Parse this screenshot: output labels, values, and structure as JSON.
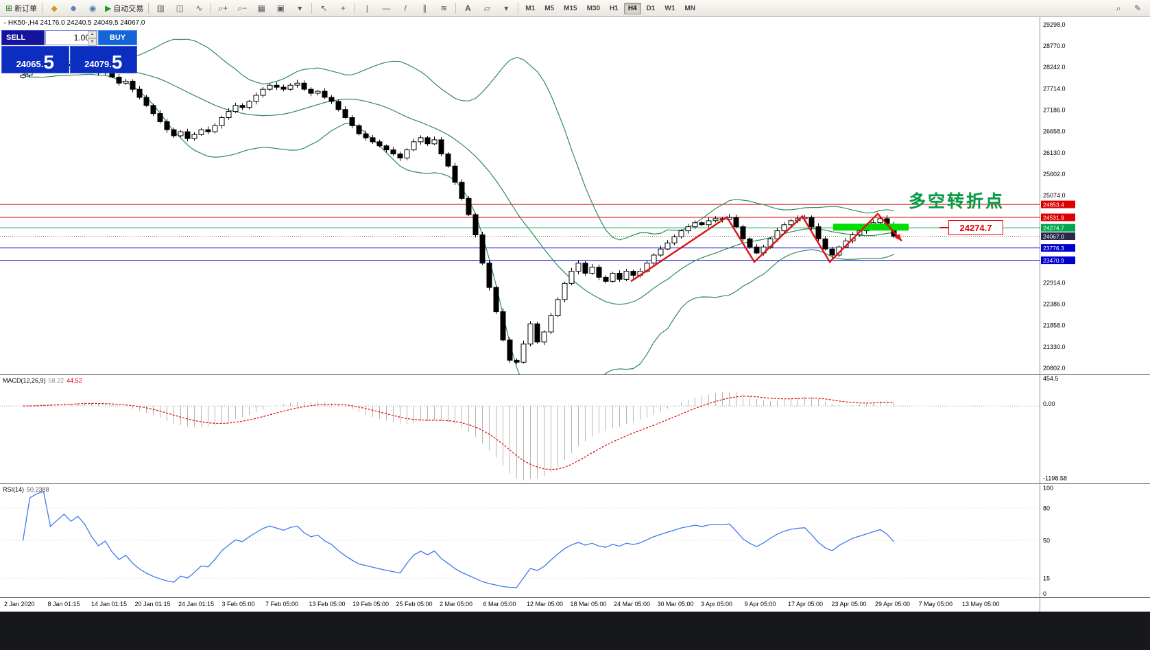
{
  "colors": {
    "toolbar_bg": "#f2f0ec",
    "bull": "#ffffff",
    "bear": "#000000",
    "candle_outline": "#000000",
    "bollinger": "#2e8b57",
    "macd_hist": "#b4b4b4",
    "macd_signal": "#dd0000",
    "rsi_line": "#3c78f0",
    "zigzag": "#e01515",
    "zone": "#00dd00",
    "level_red": "#dd0000",
    "level_green": "#00a651",
    "level_blue": "#0000cc"
  },
  "toolbar": {
    "new_order_label": "新订单",
    "autotrade_label": "自动交易",
    "icons": {
      "new_order": "⊞",
      "mql": "◆",
      "profile": "☻",
      "community": "◉",
      "autotrade_play": "▶",
      "chart_bars": "▥",
      "chart_candles": "◫",
      "chart_line": "∿",
      "zoom_in": "⌕+",
      "zoom_out": "⌕−",
      "grid": "▦",
      "tile": "▣",
      "dropdown": "▾",
      "cursor": "↖",
      "crosshair": "+",
      "vline": "|",
      "hline": "—",
      "trendline": "/",
      "channel": "∥",
      "fibo": "≋",
      "text": "A",
      "label": "▱",
      "shapes": "▾",
      "search": "⌕",
      "edit": "✎"
    },
    "timeframes": [
      {
        "label": "M1"
      },
      {
        "label": "M5"
      },
      {
        "label": "M15"
      },
      {
        "label": "M30"
      },
      {
        "label": "H1"
      },
      {
        "label": "H4",
        "active": true
      },
      {
        "label": "D1"
      },
      {
        "label": "W1"
      },
      {
        "label": "MN"
      }
    ]
  },
  "symbol_header": {
    "icon": "▪",
    "text": "HK50-,H4 24176.0 24240.5 24049.5 24067.0"
  },
  "trade_panel": {
    "sell_label": "SELL",
    "buy_label": "BUY",
    "volume": "1.00",
    "sell_price": "24065.",
    "sell_price_big": "5",
    "buy_price": "24079.",
    "buy_price_big": "5"
  },
  "annotations": {
    "turning_point": "多空转折点",
    "callout": "24274.7"
  },
  "chart_data": {
    "type": "candlestick",
    "symbol": "HK50-",
    "timeframe": "H4",
    "ohlc_header": {
      "open": 24176.0,
      "high": 24240.5,
      "low": 24049.5,
      "close": 24067.0
    },
    "y_range": {
      "top": 29500,
      "bottom": 20650
    },
    "price_axis_labels": [
      29298.0,
      28770.0,
      28242.0,
      27714.0,
      27186.0,
      26658.0,
      26130.0,
      25602.0,
      25074.0,
      22914.0,
      22386.0,
      21858.0,
      21330.0,
      20802.0
    ],
    "levels": [
      {
        "price": 24853.4,
        "display": "24853.4",
        "line_color": "#dd0000",
        "tag_color": "#dd0000",
        "style": "solid"
      },
      {
        "price": 24531.9,
        "display": "24531.9",
        "line_color": "#dd0000",
        "tag_color": "#dd0000",
        "style": "solid"
      },
      {
        "price": 24274.7,
        "display": "24274.7",
        "line_color": "#00a651",
        "tag_color": "#00a651",
        "style": "solid"
      },
      {
        "price": 24067.0,
        "display": "24067.0",
        "line_color": "#666666",
        "tag_color": "#2a2a4a",
        "style": "dotted"
      },
      {
        "price": 23776.3,
        "display": "23776.3",
        "line_color": "#0000cc",
        "tag_color": "#0000cc",
        "style": "solid"
      },
      {
        "price": 23470.9,
        "display": "23470.9",
        "line_color": "#0000cc",
        "tag_color": "#0000cc",
        "style": "solid"
      }
    ],
    "closes": [
      28050,
      28150,
      28220,
      28300,
      28180,
      28240,
      28320,
      28280,
      28350,
      28300,
      28200,
      28100,
      28150,
      28000,
      27850,
      27900,
      27700,
      27500,
      27300,
      27100,
      26900,
      26700,
      26550,
      26650,
      26480,
      26580,
      26700,
      26650,
      26800,
      27000,
      27150,
      27300,
      27250,
      27400,
      27550,
      27700,
      27800,
      27750,
      27700,
      27800,
      27850,
      27700,
      27600,
      27650,
      27500,
      27400,
      27200,
      27000,
      26800,
      26600,
      26500,
      26400,
      26300,
      26200,
      26100,
      26000,
      26200,
      26400,
      26500,
      26350,
      26450,
      26100,
      25800,
      25400,
      25000,
      24600,
      24100,
      23400,
      22800,
      22200,
      21500,
      21000,
      20950,
      21400,
      21900,
      21450,
      21700,
      22100,
      22500,
      22900,
      23200,
      23400,
      23150,
      23300,
      23050,
      22950,
      23150,
      23000,
      23200,
      23100,
      23200,
      23400,
      23600,
      23750,
      23900,
      24050,
      24200,
      24300,
      24400,
      24350,
      24450,
      24500,
      24480,
      24530,
      24300,
      24000,
      23800,
      23650,
      23800,
      24000,
      24200,
      24350,
      24450,
      24500,
      24530,
      24300,
      24000,
      23750,
      23600,
      23800,
      23950,
      24100,
      24200,
      24300,
      24400,
      24500,
      24350,
      24067
    ],
    "indicators": {
      "bollinger": {
        "period": 20,
        "deviation": 2
      },
      "macd": {
        "label": "MACD(12,26,9)",
        "main_value": "58.22",
        "signal_value": "44.52",
        "axis_labels": [
          "454.5",
          "0.00",
          "-1198.58"
        ],
        "axis_range": {
          "max": 500,
          "min": -1250
        }
      },
      "rsi": {
        "label": "RSI(14)",
        "value": "50.2388",
        "axis_labels": [
          "100",
          "80",
          "50",
          "15",
          "0"
        ],
        "levels": [
          80,
          50,
          15
        ]
      }
    },
    "overlays": {
      "zigzag": [
        [
          89,
          22950
        ],
        [
          103,
          24540
        ],
        [
          107,
          23430
        ],
        [
          114,
          24560
        ],
        [
          118,
          23430
        ],
        [
          125,
          24620
        ],
        [
          128.5,
          23950
        ]
      ],
      "support_zone": {
        "i1": 118.5,
        "i2": 129.5,
        "price": 24290,
        "half_height": 5
      }
    },
    "time_labels": [
      "2 Jan 2020",
      "8 Jan 01:15",
      "14 Jan 01:15",
      "20 Jan 01:15",
      "24 Jan 01:15",
      "3 Feb 05:00",
      "7 Feb 05:00",
      "13 Feb 05:00",
      "19 Feb 05:00",
      "25 Feb 05:00",
      "2 Mar 05:00",
      "6 Mar 05:00",
      "12 Mar 05:00",
      "18 Mar 05:00",
      "24 Mar 05:00",
      "30 Mar 05:00",
      "3 Apr 05:00",
      "9 Apr 05:00",
      "17 Apr 05:00",
      "23 Apr 05:00",
      "29 Apr 05:00",
      "7 May 05:00",
      "13 May 05:00"
    ]
  }
}
